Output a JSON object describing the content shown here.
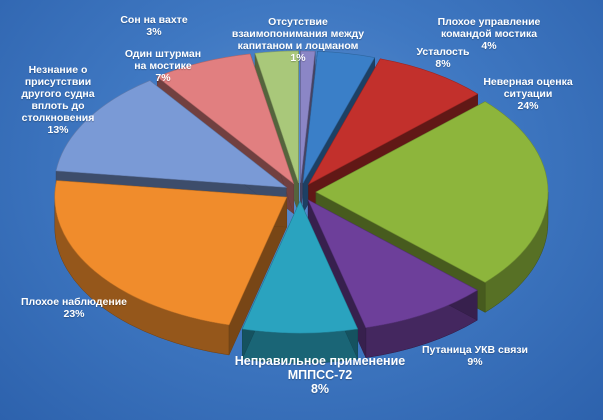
{
  "chart_data": {
    "type": "pie",
    "style": "3d-exploded",
    "slices": [
      {
        "name": "Отсутствие взаимопонимания между капитаном и лоцманом",
        "value": 1,
        "label": "1%",
        "color": "#8b86c6"
      },
      {
        "name": "Плохое управление командой мостика",
        "value": 4,
        "label": "4%",
        "color": "#3a7fc8"
      },
      {
        "name": "Усталость",
        "value": 8,
        "label": "8%",
        "color": "#c2302c"
      },
      {
        "name": "Неверная оценка ситуации",
        "value": 24,
        "label": "24%",
        "color": "#8db53c"
      },
      {
        "name": "Путаница УКВ связи",
        "value": 9,
        "label": "9%",
        "color": "#6d3f9a"
      },
      {
        "name": "Неправильное применение МППСС-72",
        "value": 8,
        "label": "8%",
        "color": "#2aa3bf"
      },
      {
        "name": "Плохое наблюдение",
        "value": 23,
        "label": "23%",
        "color": "#f08c2c"
      },
      {
        "name": "Незнание о присутствии другого судна вплоть до столкновения",
        "value": 13,
        "label": "13%",
        "color": "#7a9ad6"
      },
      {
        "name": "Один штурман на мостике",
        "value": 7,
        "label": "7%",
        "color": "#e17f80"
      },
      {
        "name": "Сон на вахте",
        "value": 3,
        "label": "3%",
        "color": "#a9c87a"
      }
    ]
  },
  "labels": {
    "pilot": {
      "name": "Отсутствие взаимопонимания между капитаном и лоцманом",
      "pct": "1%"
    },
    "bridge": {
      "name": "Плохое управление командой мостика",
      "pct": "4%"
    },
    "fatigue": {
      "name": "Усталость",
      "pct": "8%"
    },
    "assessment": {
      "name": "Неверная оценка ситуации",
      "pct": "24%"
    },
    "vhf": {
      "name": "Путаница УКВ связи",
      "pct": "9%"
    },
    "colregs": {
      "name": "Неправильное применение МППСС-72",
      "pct": "8%"
    },
    "lookout": {
      "name": "Плохое наблюдение",
      "pct": "23%"
    },
    "unaware": {
      "name": "Незнание о присутствии другого судна вплоть до столкновения",
      "pct": "13%"
    },
    "single": {
      "name": "Один штурман на мостике",
      "pct": "7%"
    },
    "sleep": {
      "name": "Сон на вахте",
      "pct": "3%"
    }
  }
}
